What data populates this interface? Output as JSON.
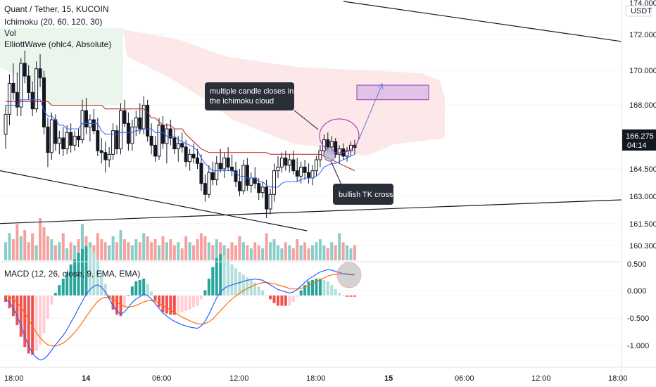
{
  "header": {
    "symbol_line": "Quant / Tether, 15, KUCOIN",
    "ichimoku_line": "Ichimoku (20, 60, 120, 30)",
    "vol_line": "Vol",
    "elliott_line": "ElliottWave (ohlc4, Absolute)",
    "macd_line": "MACD (12, 26, close, 9, EMA, EMA)"
  },
  "price_axis": {
    "currency": "USDT",
    "ticks": [
      "174.000",
      "172.000",
      "170.000",
      "168.000",
      "164.500",
      "163.000",
      "161.500",
      "160.300"
    ],
    "last_price": "166.275",
    "countdown": "04:14"
  },
  "macd_axis": {
    "ticks": [
      "0.500",
      "0.000",
      "-0.500",
      "-1.000"
    ]
  },
  "time_axis": {
    "ticks": [
      {
        "label": "18:00",
        "bold": false
      },
      {
        "label": "14",
        "bold": true
      },
      {
        "label": "06:00",
        "bold": false
      },
      {
        "label": "12:00",
        "bold": false
      },
      {
        "label": "18:00",
        "bold": false
      },
      {
        "label": "15",
        "bold": true
      },
      {
        "label": "06:00",
        "bold": false
      },
      {
        "label": "12:00",
        "bold": false
      },
      {
        "label": "18:00",
        "bold": false
      }
    ]
  },
  "annotations": {
    "cloud_note": [
      "multiple candle closes in",
      "the ichimoku cloud"
    ],
    "tk_note": "bullish TK cross"
  },
  "colors": {
    "up": "#26a69a",
    "down": "#ef5350",
    "candle": "#131722",
    "tenkan": "#2962ff",
    "kijun": "#b71c1c",
    "cloud_bear": "#fce4e4",
    "cloud_bull": "#e8f5e9",
    "macd_line": "#2962ff",
    "signal_line": "#ff6d00",
    "target_box": "#9c27b0",
    "annotation_bg": "#2a2e39",
    "last_price_bg": "#131722"
  },
  "chart_data": {
    "type": "candlestick",
    "interval": "15",
    "price_range": [
      160.0,
      174.3
    ],
    "macd_range": [
      -1.2,
      0.55
    ],
    "bars": [
      [
        167.0,
        168.6,
        166.2,
        168.1
      ],
      [
        168.1,
        170.3,
        167.5,
        169.8
      ],
      [
        169.8,
        170.9,
        168.9,
        169.3
      ],
      [
        169.3,
        170.4,
        168.0,
        168.5
      ],
      [
        168.5,
        171.2,
        168.0,
        170.9
      ],
      [
        170.9,
        171.6,
        169.8,
        170.2
      ],
      [
        170.2,
        170.8,
        168.9,
        169.3
      ],
      [
        169.3,
        169.9,
        168.0,
        168.4
      ],
      [
        168.4,
        171.0,
        168.2,
        170.6
      ],
      [
        170.6,
        171.4,
        169.6,
        170.1
      ],
      [
        170.1,
        170.5,
        167.0,
        167.4
      ],
      [
        167.4,
        167.9,
        165.2,
        166.0
      ],
      [
        166.0,
        168.2,
        165.6,
        167.8
      ],
      [
        167.8,
        168.1,
        166.1,
        166.5
      ],
      [
        166.5,
        167.2,
        165.9,
        166.8
      ],
      [
        166.8,
        167.4,
        165.8,
        166.2
      ],
      [
        166.2,
        167.5,
        165.9,
        167.1
      ],
      [
        167.1,
        167.6,
        166.0,
        166.4
      ],
      [
        166.4,
        167.2,
        166.1,
        166.9
      ],
      [
        166.9,
        167.3,
        166.3,
        166.7
      ],
      [
        166.7,
        168.9,
        166.5,
        168.3
      ],
      [
        168.3,
        169.0,
        167.0,
        167.4
      ],
      [
        167.4,
        168.1,
        166.6,
        167.8
      ],
      [
        167.8,
        168.4,
        167.0,
        167.2
      ],
      [
        167.2,
        167.9,
        165.8,
        166.1
      ],
      [
        166.1,
        166.8,
        165.4,
        166.0
      ],
      [
        166.0,
        166.6,
        164.9,
        165.6
      ],
      [
        165.6,
        166.3,
        165.2,
        165.9
      ],
      [
        165.9,
        167.6,
        165.6,
        167.2
      ],
      [
        167.2,
        167.5,
        165.9,
        166.2
      ],
      [
        166.2,
        168.7,
        165.9,
        168.3
      ],
      [
        168.3,
        168.9,
        167.4,
        167.6
      ],
      [
        167.6,
        168.2,
        166.1,
        166.5
      ],
      [
        166.5,
        167.8,
        166.1,
        167.4
      ],
      [
        167.4,
        168.3,
        166.9,
        167.9
      ],
      [
        167.9,
        168.7,
        167.0,
        167.3
      ],
      [
        167.3,
        169.1,
        167.0,
        168.6
      ],
      [
        168.6,
        168.9,
        166.6,
        166.9
      ],
      [
        166.9,
        167.6,
        165.9,
        166.4
      ],
      [
        166.4,
        166.9,
        165.5,
        165.8
      ],
      [
        165.8,
        167.9,
        165.6,
        167.5
      ],
      [
        167.5,
        168.0,
        166.2,
        166.5
      ],
      [
        166.5,
        167.6,
        165.4,
        167.3
      ],
      [
        167.3,
        167.8,
        166.4,
        166.8
      ],
      [
        166.8,
        167.3,
        165.9,
        166.2
      ],
      [
        166.2,
        166.9,
        165.5,
        166.5
      ],
      [
        166.5,
        167.1,
        166.0,
        166.3
      ],
      [
        166.3,
        166.7,
        165.2,
        165.5
      ],
      [
        165.5,
        166.2,
        165.0,
        165.9
      ],
      [
        165.9,
        166.5,
        165.4,
        165.7
      ],
      [
        165.7,
        166.2,
        165.1,
        165.4
      ],
      [
        165.4,
        165.9,
        163.9,
        164.3
      ],
      [
        164.3,
        164.8,
        163.3,
        163.7
      ],
      [
        163.7,
        165.3,
        163.5,
        164.9
      ],
      [
        164.9,
        165.5,
        164.2,
        164.5
      ],
      [
        164.5,
        165.8,
        164.2,
        165.4
      ],
      [
        165.4,
        166.2,
        164.9,
        165.1
      ],
      [
        165.1,
        166.0,
        164.6,
        165.7
      ],
      [
        165.7,
        166.3,
        165.0,
        165.2
      ],
      [
        165.2,
        165.9,
        164.7,
        165.0
      ],
      [
        165.0,
        165.5,
        164.1,
        164.4
      ],
      [
        164.4,
        165.1,
        163.6,
        163.9
      ],
      [
        163.9,
        165.6,
        163.7,
        165.3
      ],
      [
        165.3,
        165.7,
        163.9,
        164.2
      ],
      [
        164.2,
        164.9,
        163.8,
        164.6
      ],
      [
        164.6,
        165.2,
        164.0,
        164.3
      ],
      [
        164.3,
        164.6,
        163.4,
        163.8
      ],
      [
        163.8,
        164.4,
        163.5,
        164.1
      ],
      [
        164.1,
        164.5,
        162.4,
        162.9
      ],
      [
        162.9,
        164.0,
        162.6,
        163.7
      ],
      [
        163.7,
        165.4,
        163.3,
        165.0
      ],
      [
        165.0,
        165.8,
        164.6,
        165.2
      ],
      [
        165.2,
        166.0,
        164.9,
        165.7
      ],
      [
        165.7,
        166.1,
        165.0,
        165.3
      ],
      [
        165.3,
        165.9,
        164.9,
        165.6
      ],
      [
        165.6,
        166.1,
        164.8,
        165.0
      ],
      [
        165.0,
        165.7,
        164.4,
        164.7
      ],
      [
        164.7,
        165.5,
        164.3,
        165.2
      ],
      [
        165.2,
        165.6,
        164.5,
        164.9
      ],
      [
        164.9,
        165.4,
        164.3,
        164.6
      ],
      [
        164.6,
        165.3,
        164.2,
        165.0
      ],
      [
        165.0,
        165.8,
        164.7,
        165.6
      ],
      [
        165.6,
        166.4,
        165.2,
        166.1
      ],
      [
        166.1,
        167.0,
        165.8,
        166.7
      ],
      [
        166.7,
        167.1,
        166.0,
        166.3
      ],
      [
        166.3,
        166.9,
        165.9,
        166.6
      ],
      [
        166.6,
        166.8,
        165.7,
        165.9
      ],
      [
        165.9,
        166.4,
        165.4,
        166.2
      ],
      [
        166.2,
        166.5,
        165.6,
        165.8
      ],
      [
        165.8,
        166.3,
        165.5,
        166.1
      ],
      [
        166.1,
        166.6,
        165.8,
        166.4
      ],
      [
        166.4,
        166.7,
        165.9,
        166.275
      ]
    ],
    "tenkan": [
      168.6,
      168.6,
      168.6,
      168.6,
      168.9,
      168.9,
      168.9,
      168.9,
      168.9,
      168.9,
      168.3,
      168.0,
      168.0,
      167.8,
      167.5,
      167.5,
      167.3,
      167.3,
      167.3,
      167.3,
      167.6,
      167.6,
      167.6,
      167.6,
      167.6,
      167.2,
      167.0,
      167.0,
      167.0,
      167.0,
      167.1,
      167.1,
      167.1,
      167.1,
      167.2,
      167.2,
      167.3,
      167.3,
      167.3,
      167.1,
      167.1,
      167.1,
      166.9,
      166.9,
      166.9,
      166.7,
      166.6,
      166.5,
      166.4,
      166.3,
      166.1,
      165.7,
      165.4,
      165.2,
      165.0,
      165.0,
      165.0,
      165.0,
      165.0,
      165.0,
      164.9,
      164.7,
      164.7,
      164.6,
      164.6,
      164.6,
      164.4,
      164.4,
      164.2,
      164.1,
      164.1,
      164.1,
      164.3,
      164.4,
      164.4,
      164.4,
      164.4,
      164.5,
      164.6,
      164.6,
      164.6,
      164.7,
      164.9,
      165.2,
      165.3,
      165.4,
      165.4,
      165.5,
      165.6,
      165.7,
      165.8,
      165.9
    ],
    "kijun": [
      168.8,
      168.8,
      168.8,
      168.8,
      168.8,
      168.8,
      168.8,
      168.8,
      168.8,
      168.8,
      168.8,
      168.8,
      168.6,
      168.6,
      168.6,
      168.6,
      168.6,
      168.6,
      168.6,
      168.6,
      168.6,
      168.6,
      168.6,
      168.6,
      168.6,
      168.6,
      168.4,
      168.4,
      168.4,
      168.4,
      168.4,
      168.4,
      168.4,
      168.4,
      168.4,
      168.4,
      168.4,
      168.2,
      167.9,
      167.9,
      167.7,
      167.5,
      167.5,
      167.5,
      167.3,
      167.3,
      167.3,
      167.0,
      166.8,
      166.6,
      166.4,
      166.2,
      166.1,
      166.0,
      166.0,
      166.0,
      166.0,
      166.0,
      166.0,
      166.0,
      166.0,
      166.0,
      166.0,
      166.0,
      166.0,
      166.0,
      166.0,
      166.0,
      166.0,
      165.9,
      165.9,
      165.9,
      165.9,
      165.9,
      165.9,
      165.9,
      165.9,
      165.9,
      165.9,
      165.9,
      165.9,
      165.9,
      165.9,
      165.8,
      165.7,
      165.6,
      165.5,
      165.4,
      165.3,
      165.2,
      165.1,
      165.0
    ],
    "volume": [
      6,
      9,
      7,
      12,
      8,
      10,
      6,
      9,
      5,
      14,
      11,
      8,
      7,
      5,
      6,
      9,
      4,
      6,
      5,
      7,
      12,
      8,
      6,
      5,
      9,
      7,
      6,
      5,
      8,
      6,
      10,
      7,
      6,
      5,
      7,
      6,
      9,
      8,
      6,
      7,
      5,
      8,
      6,
      7,
      5,
      6,
      4,
      8,
      6,
      5,
      7,
      9,
      8,
      6,
      5,
      7,
      6,
      5,
      4,
      6,
      5,
      8,
      6,
      5,
      4,
      6,
      5,
      4,
      9,
      6,
      7,
      5,
      4,
      6,
      5,
      4,
      7,
      5,
      6,
      4,
      5,
      6,
      7,
      5,
      4,
      6,
      5,
      9,
      6,
      5,
      4,
      5
    ],
    "macd": [
      -0.05,
      -0.12,
      -0.22,
      -0.35,
      -0.52,
      -0.7,
      -0.86,
      -0.98,
      -1.06,
      -1.1,
      -1.08,
      -1.02,
      -0.93,
      -0.84,
      -0.76,
      -0.68,
      -0.58,
      -0.46,
      -0.35,
      -0.22,
      -0.1,
      0.02,
      0.1,
      0.16,
      0.18,
      0.14,
      0.06,
      -0.06,
      -0.18,
      -0.26,
      -0.32,
      -0.28,
      -0.2,
      -0.12,
      -0.06,
      -0.02,
      0.02,
      0.0,
      -0.06,
      -0.14,
      -0.22,
      -0.3,
      -0.35,
      -0.4,
      -0.44,
      -0.47,
      -0.5,
      -0.52,
      -0.54,
      -0.55,
      -0.56,
      -0.52,
      -0.44,
      -0.32,
      -0.18,
      -0.04,
      0.06,
      0.12,
      0.16,
      0.18,
      0.2,
      0.22,
      0.24,
      0.26,
      0.27,
      0.28,
      0.27,
      0.26,
      0.22,
      0.18,
      0.14,
      0.1,
      0.08,
      0.06,
      0.04,
      0.06,
      0.1,
      0.16,
      0.22,
      0.28,
      0.32,
      0.36,
      0.4,
      0.42,
      0.44,
      0.43,
      0.41,
      0.39,
      0.37,
      0.36,
      0.35,
      0.35
    ],
    "signal": [
      0.0,
      -0.02,
      -0.06,
      -0.12,
      -0.2,
      -0.3,
      -0.41,
      -0.52,
      -0.63,
      -0.72,
      -0.79,
      -0.84,
      -0.86,
      -0.86,
      -0.84,
      -0.81,
      -0.76,
      -0.7,
      -0.63,
      -0.55,
      -0.46,
      -0.36,
      -0.27,
      -0.18,
      -0.1,
      -0.05,
      -0.03,
      -0.04,
      -0.07,
      -0.11,
      -0.16,
      -0.19,
      -0.2,
      -0.19,
      -0.17,
      -0.14,
      -0.11,
      -0.09,
      -0.09,
      -0.1,
      -0.13,
      -0.17,
      -0.21,
      -0.25,
      -0.29,
      -0.33,
      -0.37,
      -0.4,
      -0.43,
      -0.46,
      -0.48,
      -0.49,
      -0.48,
      -0.45,
      -0.4,
      -0.33,
      -0.26,
      -0.19,
      -0.12,
      -0.06,
      -0.01,
      0.04,
      0.08,
      0.12,
      0.15,
      0.18,
      0.2,
      0.22,
      0.22,
      0.21,
      0.2,
      0.18,
      0.16,
      0.14,
      0.12,
      0.11,
      0.11,
      0.12,
      0.14,
      0.17,
      0.2,
      0.23,
      0.27,
      0.3,
      0.33,
      0.35,
      0.36,
      0.37,
      0.37,
      0.37,
      0.36,
      0.36
    ],
    "trendlines": [
      {
        "from": [
          0,
          165.0
        ],
        "to": [
          55,
          161.7
        ]
      },
      {
        "from": [
          0,
          162.1
        ],
        "to": [
          120,
          163.4
        ]
      },
      {
        "from": [
          60,
          174.3
        ],
        "to": [
          120,
          172.1
        ]
      }
    ],
    "target_box": {
      "price_top": 169.7,
      "price_bottom": 168.9
    }
  }
}
